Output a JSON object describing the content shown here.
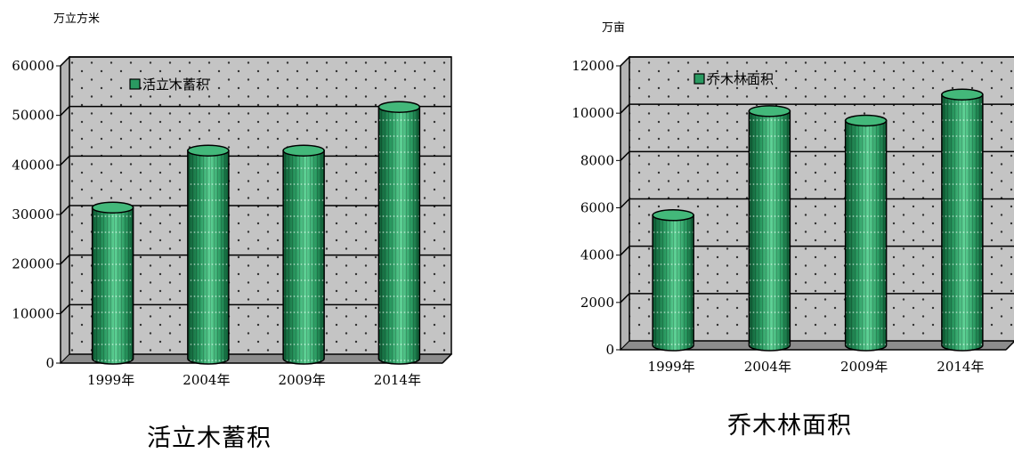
{
  "colors": {
    "bar_front": "#2a9a61",
    "bar_dark": "#0d5a33",
    "bar_light": "#5fd296",
    "bar_top": "#43b87a",
    "wall": "#c4c4c4",
    "floor": "#8c8c8c",
    "dots": "#ffffff"
  },
  "chart_data": [
    {
      "type": "bar",
      "unit": "万立方米",
      "title": "活立木蓄积",
      "categories": [
        "1999年",
        "2004年",
        "2009年",
        "2014年"
      ],
      "series": [
        {
          "name": "活立木蓄积",
          "values": [
            30500,
            42000,
            42000,
            50800
          ]
        }
      ],
      "ylim": [
        0,
        60000
      ],
      "yticks": [
        0,
        10000,
        20000,
        30000,
        40000,
        50000,
        60000
      ],
      "grid": true,
      "legend_position": "top-left"
    },
    {
      "type": "bar",
      "unit": "万亩",
      "title": "乔木林面积",
      "categories": [
        "1999年",
        "2004年",
        "2009年",
        "2014年"
      ],
      "series": [
        {
          "name": "乔木林面积",
          "values": [
            5500,
            9900,
            9500,
            10600
          ]
        }
      ],
      "ylim": [
        0,
        12000
      ],
      "yticks": [
        0,
        2000,
        4000,
        6000,
        8000,
        10000,
        12000
      ],
      "grid": true,
      "legend_position": "top-left"
    }
  ]
}
